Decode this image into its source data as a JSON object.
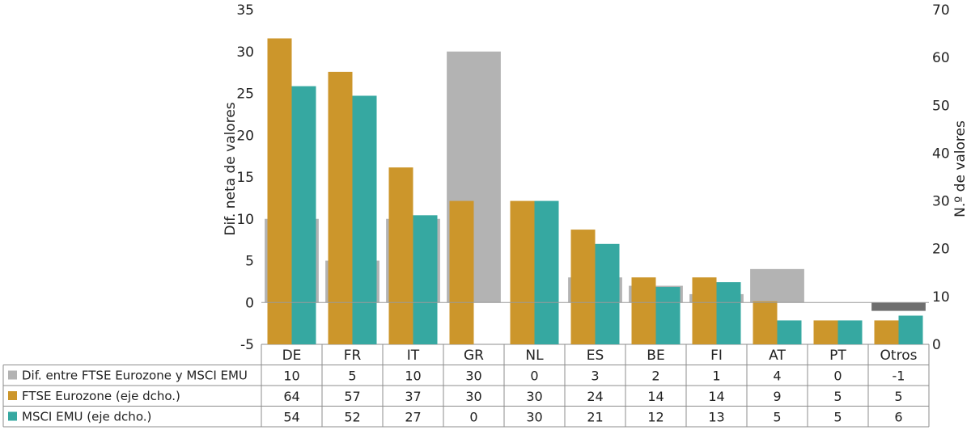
{
  "chart_data": {
    "type": "bar",
    "categories": [
      "DE",
      "FR",
      "IT",
      "GR",
      "NL",
      "ES",
      "BE",
      "FI",
      "AT",
      "PT",
      "Otros"
    ],
    "series": [
      {
        "name": "Dif. entre FTSE Eurozone y MSCI EMU",
        "axis": "left",
        "values": [
          10,
          5,
          10,
          30,
          0,
          3,
          2,
          1,
          4,
          0,
          -1
        ],
        "color": "#b3b3b3",
        "negative_color": "#6e6e6e"
      },
      {
        "name": "FTSE Eurozone (eje dcho.)",
        "axis": "right",
        "values": [
          64,
          57,
          37,
          30,
          30,
          24,
          14,
          14,
          9,
          5,
          5
        ],
        "color": "#cc962b"
      },
      {
        "name": "MSCI EMU (eje dcho.)",
        "axis": "right",
        "values": [
          54,
          52,
          27,
          0,
          30,
          21,
          12,
          13,
          5,
          5,
          6
        ],
        "color": "#36a8a1"
      }
    ],
    "ylabel": "Dif. neta de valores",
    "y2label": "N.º de valores",
    "ylim": [
      -5,
      35
    ],
    "y2lim": [
      0,
      70
    ],
    "yticks": [
      -5,
      0,
      5,
      10,
      15,
      20,
      25,
      30,
      35
    ],
    "y2ticks": [
      0,
      10,
      20,
      30,
      40,
      50,
      60,
      70
    ],
    "grid": false,
    "legend": "data table below chart"
  }
}
